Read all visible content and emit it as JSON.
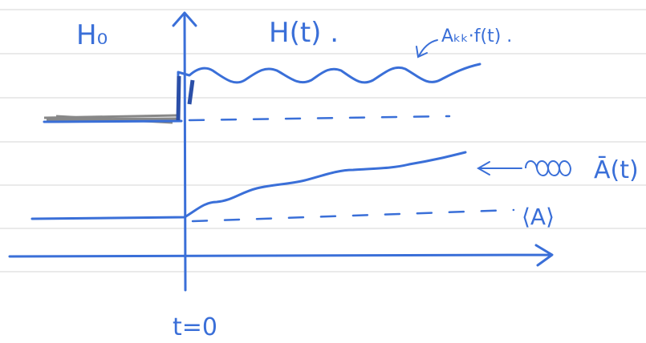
{
  "labels": {
    "h0": "H₀",
    "ht": "H(t) .",
    "akk": "Aₖₖ·f(t) .",
    "abar": "Ā(t)",
    "avg": "⟨A⟩",
    "t0": "t=0"
  }
}
